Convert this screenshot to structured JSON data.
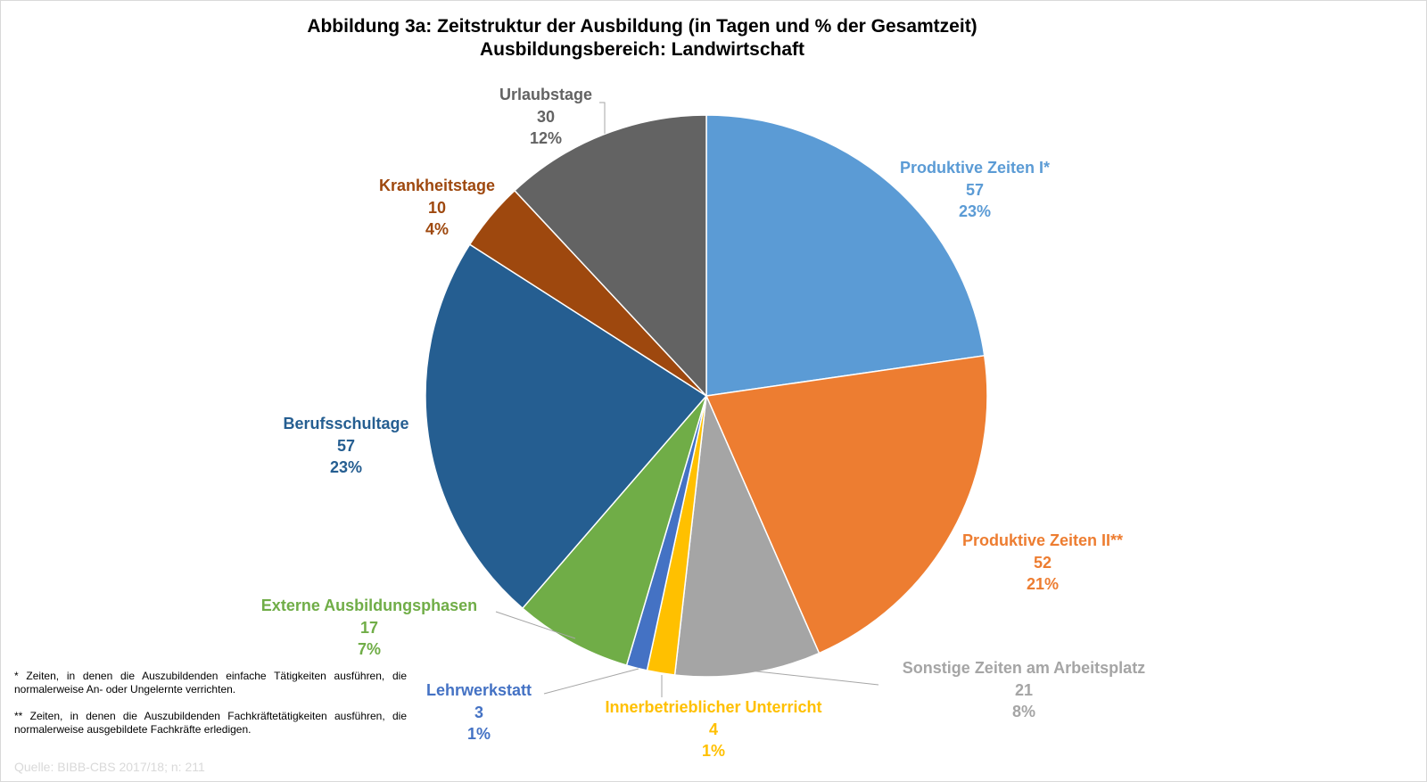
{
  "chart_data": {
    "type": "pie",
    "title": "Abbildung 3a: Zeitstruktur der Ausbildung (in Tagen und % der Gesamtzeit)",
    "subtitle": "Ausbildungsbereich: Landwirtschaft",
    "start_angle": "12 o'clock, clockwise",
    "slices": [
      {
        "name": "Produktive Zeiten I*",
        "value": 57,
        "percent": "23%",
        "color": "#5B9BD5"
      },
      {
        "name": "Produktive Zeiten II**",
        "value": 52,
        "percent": "21%",
        "color": "#ED7D31"
      },
      {
        "name": "Sonstige Zeiten am Arbeitsplatz",
        "value": 21,
        "percent": "8%",
        "color": "#A5A5A5"
      },
      {
        "name": "Innerbetrieblicher Unterricht",
        "value": 4,
        "percent": "1%",
        "color": "#FFC000"
      },
      {
        "name": "Lehrwerkstatt",
        "value": 3,
        "percent": "1%",
        "color": "#4472C4"
      },
      {
        "name": "Externe Ausbildungsphasen",
        "value": 17,
        "percent": "7%",
        "color": "#70AD47"
      },
      {
        "name": "Berufsschultage",
        "value": 57,
        "percent": "23%",
        "color": "#255E91"
      },
      {
        "name": "Krankheitstage",
        "value": 10,
        "percent": "4%",
        "color": "#9E480E"
      },
      {
        "name": "Urlaubstage",
        "value": 30,
        "percent": "12%",
        "color": "#636363"
      }
    ]
  },
  "footnotes": {
    "note1": "* Zeiten, in denen die Auszubildenden einfache Tätigkeiten ausführen, die normalerweise An- oder Ungelernte verrichten.",
    "note2": "** Zeiten, in denen die Auszubildenden Fachkräftetätigkeiten ausführen, die normalerweise ausgebildete Fachkräfte erledigen.",
    "source": "Quelle: BIBB-CBS 2017/18; n: 211"
  }
}
